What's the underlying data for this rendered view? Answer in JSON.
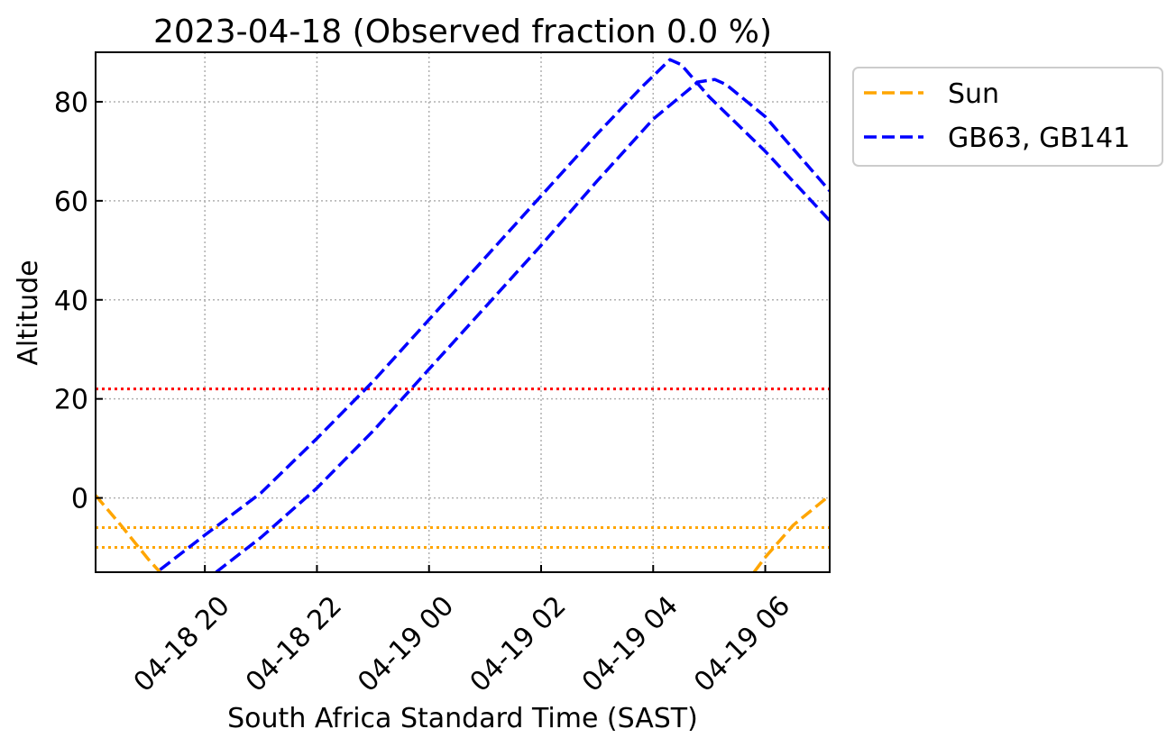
{
  "chart_data": {
    "type": "line",
    "title": "2023-04-18 (Observed fraction 0.0 %)",
    "xlabel": "South Africa Standard Time (SAST)",
    "ylabel": "Altitude",
    "x_units": "hours since 2023-04-18 00:00 SAST",
    "xlim": [
      18.05,
      31.15
    ],
    "ylim": [
      -15,
      90
    ],
    "grid": true,
    "legend_placement": "outside-right-top",
    "x_ticks": [
      {
        "value": 20,
        "label": "04-18 20"
      },
      {
        "value": 22,
        "label": "04-18 22"
      },
      {
        "value": 24,
        "label": "04-19 00"
      },
      {
        "value": 26,
        "label": "04-19 02"
      },
      {
        "value": 28,
        "label": "04-19 04"
      },
      {
        "value": 30,
        "label": "04-19 06"
      }
    ],
    "y_ticks": [
      0,
      20,
      40,
      60,
      80
    ],
    "series": [
      {
        "name": "Sun",
        "color": "#FFA500",
        "style": "dashed",
        "segments": [
          {
            "x": [
              18.05,
              18.5,
              19.0,
              19.2
            ],
            "y": [
              0.5,
              -5.5,
              -12.5,
              -15
            ]
          },
          {
            "x": [
              29.8,
              30.0,
              30.5,
              31.15
            ],
            "y": [
              -15,
              -12,
              -5.5,
              0.5
            ]
          }
        ]
      },
      {
        "name": "GB63, GB141",
        "color": "#0000FF",
        "style": "dashed",
        "segments": [
          {
            "x": [
              19.2,
              20.0,
              21.0,
              22.0,
              23.0,
              24.0,
              25.0,
              26.0,
              27.0,
              27.8,
              28.3,
              28.5,
              29.0,
              30.0,
              31.15
            ],
            "y": [
              -14.5,
              -7.5,
              1,
              12,
              23.5,
              36,
              48.5,
              61,
              73.5,
              83,
              88.5,
              87.5,
              81,
              70,
              56
            ]
          },
          {
            "x": [
              20.2,
              21.0,
              22.0,
              23.0,
              24.0,
              25.0,
              26.0,
              27.0,
              28.0,
              28.8,
              29.1,
              29.3,
              30.0,
              31.15
            ],
            "y": [
              -15,
              -8,
              2,
              13.5,
              26,
              38.5,
              51,
              64,
              76.5,
              84,
              84.5,
              83.5,
              77,
              62
            ]
          }
        ]
      }
    ],
    "reference_lines": [
      {
        "y": 22,
        "color": "#FF0000",
        "style": "dotted"
      },
      {
        "y": -6,
        "color": "#FFA500",
        "style": "dotted"
      },
      {
        "y": -10,
        "color": "#FFA500",
        "style": "dotted"
      }
    ]
  }
}
